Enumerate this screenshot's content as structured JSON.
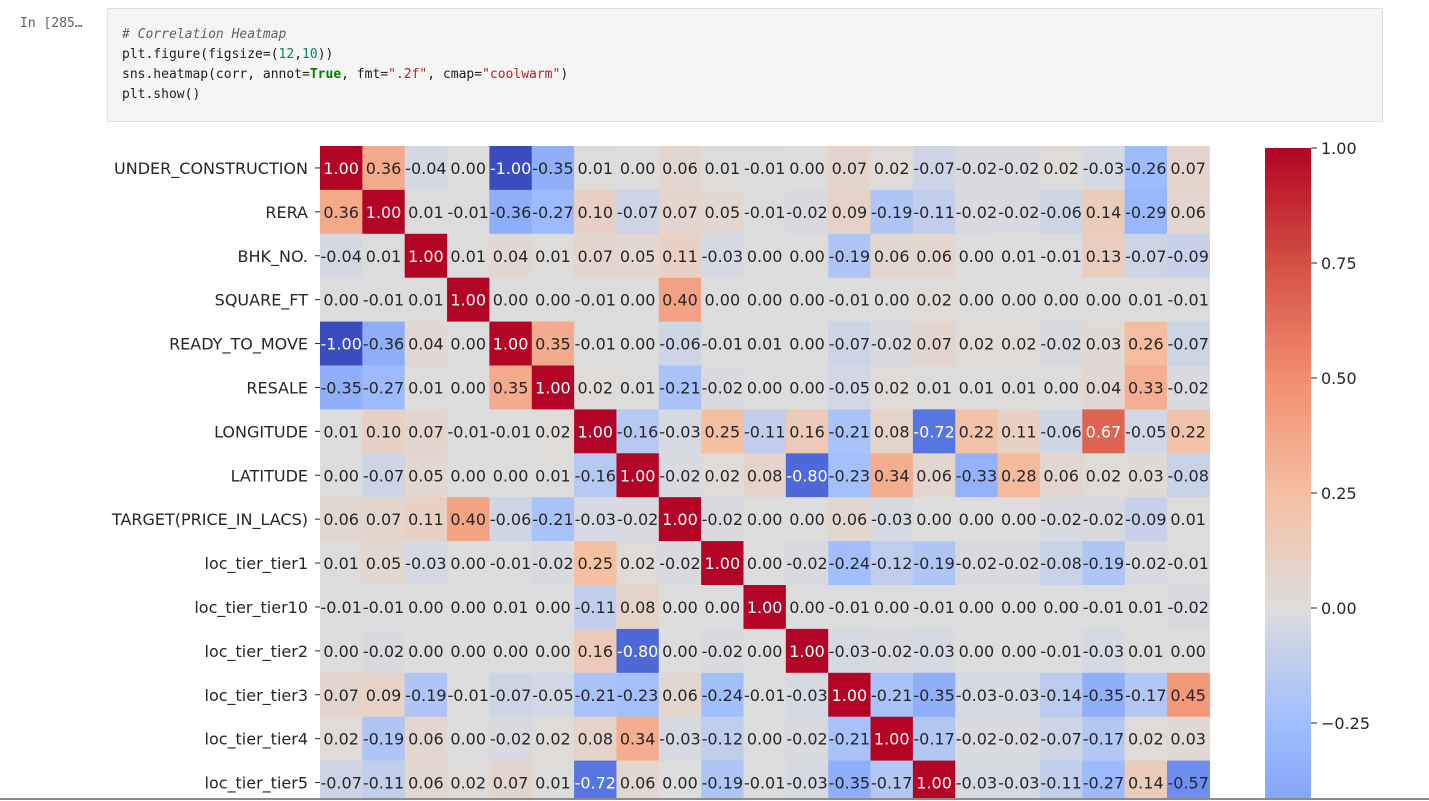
{
  "cell": {
    "prompt": "In [285…",
    "code": {
      "comment": "# Correlation Heatmap",
      "line2": {
        "pre": "plt.figure(figsize=(",
        "num1": "12",
        "comma": ",",
        "num2": "10",
        "post": "))"
      },
      "line3": {
        "pre": "sns.heatmap(corr, annot=",
        "kw": "True",
        "mid": ", fmt=",
        "fmt": "\".2f\"",
        "mid2": ", cmap=",
        "cmap": "\"coolwarm\"",
        "post": ")"
      },
      "line4": "plt.show()"
    }
  },
  "chart_data": {
    "type": "heatmap",
    "colormap": "coolwarm",
    "value_format": ".2f",
    "rows": [
      "UNDER_CONSTRUCTION",
      "RERA",
      "BHK_NO.",
      "SQUARE_FT",
      "READY_TO_MOVE",
      "RESALE",
      "LONGITUDE",
      "LATITUDE",
      "TARGET(PRICE_IN_LACS)",
      "loc_tier_tier1",
      "loc_tier_tier10",
      "loc_tier_tier2",
      "loc_tier_tier3",
      "loc_tier_tier4",
      "loc_tier_tier5"
    ],
    "values": [
      [
        1.0,
        0.36,
        -0.04,
        -0.0,
        -1.0,
        -0.35,
        0.01,
        -0.0,
        0.06,
        0.01,
        -0.01,
        -0.0,
        0.07,
        0.02,
        -0.07,
        -0.02,
        -0.02,
        0.02,
        -0.03,
        -0.26,
        0.07
      ],
      [
        0.36,
        1.0,
        0.01,
        -0.01,
        -0.36,
        -0.27,
        0.1,
        -0.07,
        0.07,
        0.05,
        -0.01,
        -0.02,
        0.09,
        -0.19,
        -0.11,
        -0.02,
        -0.02,
        -0.06,
        0.14,
        -0.29,
        0.06
      ],
      [
        -0.04,
        0.01,
        1.0,
        0.01,
        0.04,
        0.01,
        0.07,
        0.05,
        0.11,
        -0.03,
        0.0,
        -0.0,
        -0.19,
        0.06,
        0.06,
        0.0,
        0.01,
        -0.01,
        0.13,
        -0.07,
        -0.09
      ],
      [
        -0.0,
        -0.01,
        0.01,
        1.0,
        0.0,
        0.0,
        -0.01,
        0.0,
        0.4,
        -0.0,
        -0.0,
        -0.0,
        -0.01,
        -0.0,
        0.02,
        -0.0,
        -0.0,
        -0.0,
        -0.0,
        0.01,
        -0.01
      ],
      [
        -1.0,
        -0.36,
        0.04,
        0.0,
        1.0,
        0.35,
        -0.01,
        0.0,
        -0.06,
        -0.01,
        0.01,
        0.0,
        -0.07,
        -0.02,
        0.07,
        0.02,
        0.02,
        -0.02,
        0.03,
        0.26,
        -0.07
      ],
      [
        -0.35,
        -0.27,
        0.01,
        0.0,
        0.35,
        1.0,
        0.02,
        0.01,
        -0.21,
        -0.02,
        0.0,
        -0.0,
        -0.05,
        0.02,
        0.01,
        0.01,
        0.01,
        0.0,
        0.04,
        0.33,
        -0.02
      ],
      [
        0.01,
        0.1,
        0.07,
        -0.01,
        -0.01,
        0.02,
        1.0,
        -0.16,
        -0.03,
        0.25,
        -0.11,
        0.16,
        -0.21,
        0.08,
        -0.72,
        0.22,
        0.11,
        -0.06,
        0.67,
        -0.05,
        0.22
      ],
      [
        -0.0,
        -0.07,
        0.05,
        0.0,
        0.0,
        0.01,
        -0.16,
        1.0,
        -0.02,
        0.02,
        0.08,
        -0.8,
        -0.23,
        0.34,
        0.06,
        -0.33,
        0.28,
        0.06,
        0.02,
        0.03,
        -0.08
      ],
      [
        0.06,
        0.07,
        0.11,
        0.4,
        -0.06,
        -0.21,
        -0.03,
        -0.02,
        1.0,
        -0.02,
        -0.0,
        -0.0,
        0.06,
        -0.03,
        0.0,
        -0.0,
        -0.0,
        -0.02,
        -0.02,
        -0.09,
        0.01
      ],
      [
        0.01,
        0.05,
        -0.03,
        -0.0,
        -0.01,
        -0.02,
        0.25,
        0.02,
        -0.02,
        1.0,
        -0.0,
        -0.02,
        -0.24,
        -0.12,
        -0.19,
        -0.02,
        -0.02,
        -0.08,
        -0.19,
        -0.02,
        -0.01
      ],
      [
        -0.01,
        -0.01,
        0.0,
        -0.0,
        0.01,
        0.0,
        -0.11,
        0.08,
        -0.0,
        -0.0,
        1.0,
        -0.0,
        -0.01,
        -0.0,
        -0.01,
        -0.0,
        -0.0,
        -0.0,
        -0.01,
        0.01,
        -0.02
      ],
      [
        -0.0,
        -0.02,
        -0.0,
        -0.0,
        0.0,
        -0.0,
        0.16,
        -0.8,
        -0.0,
        -0.02,
        -0.0,
        1.0,
        -0.03,
        -0.02,
        -0.03,
        -0.0,
        -0.0,
        -0.01,
        -0.03,
        0.01,
        -0.0
      ],
      [
        0.07,
        0.09,
        -0.19,
        -0.01,
        -0.07,
        -0.05,
        -0.21,
        -0.23,
        0.06,
        -0.24,
        -0.01,
        -0.03,
        1.0,
        -0.21,
        -0.35,
        -0.03,
        -0.03,
        -0.14,
        -0.35,
        -0.17,
        0.45
      ],
      [
        0.02,
        -0.19,
        0.06,
        -0.0,
        -0.02,
        0.02,
        0.08,
        0.34,
        -0.03,
        -0.12,
        -0.0,
        -0.02,
        -0.21,
        1.0,
        -0.17,
        -0.02,
        -0.02,
        -0.07,
        -0.17,
        0.02,
        0.03
      ],
      [
        -0.07,
        -0.11,
        0.06,
        0.02,
        0.07,
        0.01,
        -0.72,
        0.06,
        0.0,
        -0.19,
        -0.01,
        -0.03,
        -0.35,
        -0.17,
        1.0,
        -0.03,
        -0.03,
        -0.11,
        -0.27,
        0.14,
        -0.57
      ]
    ],
    "colorbar": {
      "range": [
        -1.0,
        1.0
      ],
      "ticks": [
        1.0,
        0.75,
        0.5,
        0.25,
        0.0,
        -0.25
      ],
      "tick_labels": [
        "1.00",
        "0.75",
        "0.50",
        "0.25",
        "0.00",
        "−0.25"
      ]
    }
  }
}
